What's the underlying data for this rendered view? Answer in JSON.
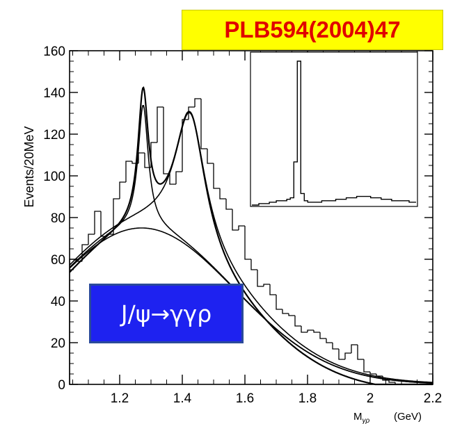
{
  "reference": "PLB594(2004)47",
  "decay_label": "J/ψ→γγρ",
  "chart_data": {
    "type": "histogram",
    "title": "",
    "xlabel": "M_γρ (GeV)",
    "xlabel_main": "M",
    "xlabel_sub": "γρ",
    "xlabel_unit": "(GeV)",
    "ylabel": "Events/20MeV",
    "xlim": [
      1.04,
      2.2
    ],
    "ylim": [
      0,
      160
    ],
    "x_ticks": [
      1.2,
      1.4,
      1.6,
      1.8,
      2.0,
      2.2
    ],
    "x_tick_labels": [
      "1.2",
      "1.4",
      "1.6",
      "1.8",
      "2",
      "2.2"
    ],
    "y_ticks": [
      0,
      20,
      40,
      60,
      80,
      100,
      120,
      140,
      160
    ],
    "y_tick_labels": [
      "0",
      "20",
      "40",
      "60",
      "80",
      "100",
      "120",
      "140",
      "160"
    ],
    "bin_width": 0.02,
    "bins": {
      "x_start": 1.04,
      "counts": [
        60,
        59,
        67,
        72,
        83,
        71,
        72,
        89,
        97,
        107,
        106,
        111,
        104,
        116,
        133,
        101,
        96,
        102,
        127,
        133,
        137,
        113,
        106,
        94,
        89,
        84,
        74,
        76,
        60,
        55,
        47,
        48,
        43,
        36,
        34,
        33,
        28,
        25,
        26,
        25,
        22,
        20,
        17,
        12,
        15,
        19,
        12,
        6,
        5,
        4,
        2,
        1,
        0,
        0,
        0,
        0,
        0,
        0
      ]
    },
    "fit_components": {
      "background": {
        "peak": 75,
        "peak_x": 1.27,
        "width": 0.4
      },
      "peak1": {
        "mass": 1.275,
        "width": 0.04,
        "height": 62
      },
      "peak2": {
        "mass": 1.425,
        "width": 0.12,
        "height": 68
      }
    },
    "grid": false,
    "inset": {
      "type": "histogram",
      "description_counts": [
        0,
        0,
        1,
        1,
        1,
        2,
        2,
        3,
        3,
        3,
        4,
        5,
        30,
        100,
        8,
        3,
        2,
        2,
        2,
        2,
        3,
        3,
        3,
        3,
        4,
        4,
        4,
        5,
        5,
        5,
        6,
        6,
        6,
        6,
        5,
        5,
        5,
        4,
        4,
        4,
        3,
        3,
        3,
        3,
        3,
        2,
        2
      ]
    }
  }
}
